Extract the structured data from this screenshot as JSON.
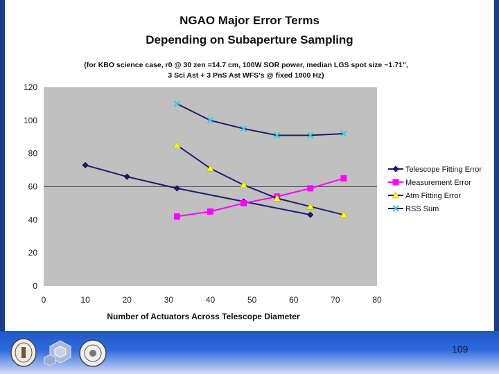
{
  "slide": {
    "title_line1": "NGAO Major Error Terms",
    "title_line2": "Depending on Subaperture Sampling",
    "subtitle_line1": "(for KBO science case, r0 @ 30 zen =14.7 cm, 100W SOR power, median LGS spot size ~1.71\",",
    "subtitle_line2": "3 Sci Ast + 3 PnS Ast WFS's @ fixed 1000 Hz)",
    "page_number": "109"
  },
  "colors": {
    "plot_bg": "#c0c0c0",
    "footer": "#2a63d6",
    "telescope": "#1c1c6e",
    "measurement": "#ff00ff",
    "atm": "#ffff00",
    "rss": "#33ccdd"
  },
  "chart_data": {
    "type": "line",
    "title": "NGAO Major Error Terms Depending on Subaperture Sampling",
    "xlabel": "Number of Actuators Across Telescope Diameter",
    "ylabel": "",
    "xlim": [
      0,
      80
    ],
    "ylim": [
      0,
      120
    ],
    "x_ticks": [
      "0",
      "10",
      "20",
      "30",
      "40",
      "50",
      "60",
      "70",
      "80"
    ],
    "y_ticks": [
      "0",
      "20",
      "40",
      "60",
      "80",
      "100",
      "120"
    ],
    "gridline_y": 60,
    "legend_position": "right",
    "series": [
      {
        "name": "Telescope Fitting Error",
        "color": "#1c1c6e",
        "marker": "diamond",
        "x": [
          10,
          20,
          32,
          48,
          64
        ],
        "y": [
          73,
          66,
          59,
          51,
          43
        ]
      },
      {
        "name": "Measurement Error",
        "color": "#ff00ff",
        "marker": "square",
        "x": [
          32,
          40,
          48,
          56,
          64,
          72
        ],
        "y": [
          42,
          45,
          50,
          54,
          59,
          65
        ]
      },
      {
        "name": "Atm Fitting Error",
        "color": "#1c1c6e",
        "marker_color": "#ffff00",
        "marker": "triangle",
        "x": [
          32,
          40,
          48,
          56,
          64,
          72
        ],
        "y": [
          85,
          71,
          61,
          53,
          48,
          43
        ]
      },
      {
        "name": "RSS Sum",
        "color": "#1c1c6e",
        "marker_color": "#33ccdd",
        "marker": "x",
        "x": [
          32,
          40,
          48,
          56,
          64,
          72
        ],
        "y": [
          110,
          100,
          95,
          91,
          91,
          92
        ]
      }
    ]
  }
}
